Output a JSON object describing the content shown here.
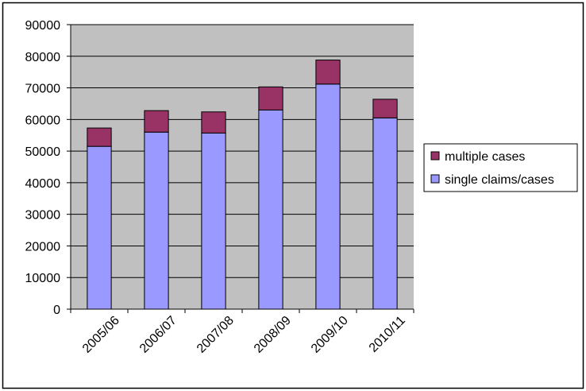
{
  "chart_data": {
    "type": "bar",
    "stacked": true,
    "categories": [
      "2005/06",
      "2006/07",
      "2007/08",
      "2008/09",
      "2009/10",
      "2010/11"
    ],
    "series": [
      {
        "name": "single claims/cases",
        "color": "#9999ff",
        "values": [
          51500,
          56000,
          55700,
          63000,
          71200,
          60500
        ]
      },
      {
        "name": "multiple cases",
        "color": "#993366",
        "values": [
          5800,
          6800,
          6700,
          7300,
          7600,
          5900
        ]
      }
    ],
    "ylim": [
      0,
      90000
    ],
    "yticks": [
      0,
      10000,
      20000,
      30000,
      40000,
      50000,
      60000,
      70000,
      80000,
      90000
    ],
    "grid": true,
    "plot_background": "#c0c0c0",
    "legend_position": "right",
    "legend_order": [
      "multiple cases",
      "single claims/cases"
    ]
  }
}
